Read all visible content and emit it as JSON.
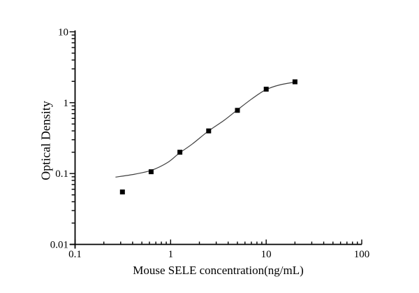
{
  "chart_data": {
    "type": "scatter",
    "title": "",
    "xlabel": "Mouse SELE concentration(ng/mL)",
    "ylabel": "Optical Density",
    "x_scale": "log",
    "y_scale": "log",
    "xlim": [
      0.1,
      100
    ],
    "ylim": [
      0.01,
      10
    ],
    "grid": false,
    "legend": null,
    "x_ticks": [
      {
        "value": 0.1,
        "label": "0.1"
      },
      {
        "value": 1,
        "label": "1"
      },
      {
        "value": 10,
        "label": "10"
      },
      {
        "value": 100,
        "label": "100"
      }
    ],
    "y_ticks": [
      {
        "value": 0.01,
        "label": "0.01"
      },
      {
        "value": 0.1,
        "label": "0.1"
      },
      {
        "value": 1,
        "label": "1"
      },
      {
        "value": 10,
        "label": "10"
      }
    ],
    "series": [
      {
        "name": "standard-points",
        "kind": "scatter",
        "marker": "filled-square",
        "x": [
          0.313,
          0.625,
          1.25,
          2.5,
          5,
          10,
          20
        ],
        "y": [
          0.055,
          0.106,
          0.2,
          0.4,
          0.78,
          1.55,
          1.97
        ]
      },
      {
        "name": "fitted-curve",
        "kind": "line",
        "x": [
          0.265,
          0.42,
          0.63,
          0.93,
          1.22,
          1.69,
          2.44,
          3.6,
          4.93,
          7.0,
          9.8,
          13.8,
          20
        ],
        "y": [
          0.089,
          0.098,
          0.111,
          0.143,
          0.192,
          0.262,
          0.39,
          0.56,
          0.78,
          1.12,
          1.51,
          1.78,
          1.95
        ]
      }
    ],
    "colors": {
      "axis": "#000000",
      "text": "#000000",
      "curve": "#3f3f3f",
      "marker": "#000000",
      "background": "#ffffff"
    }
  }
}
